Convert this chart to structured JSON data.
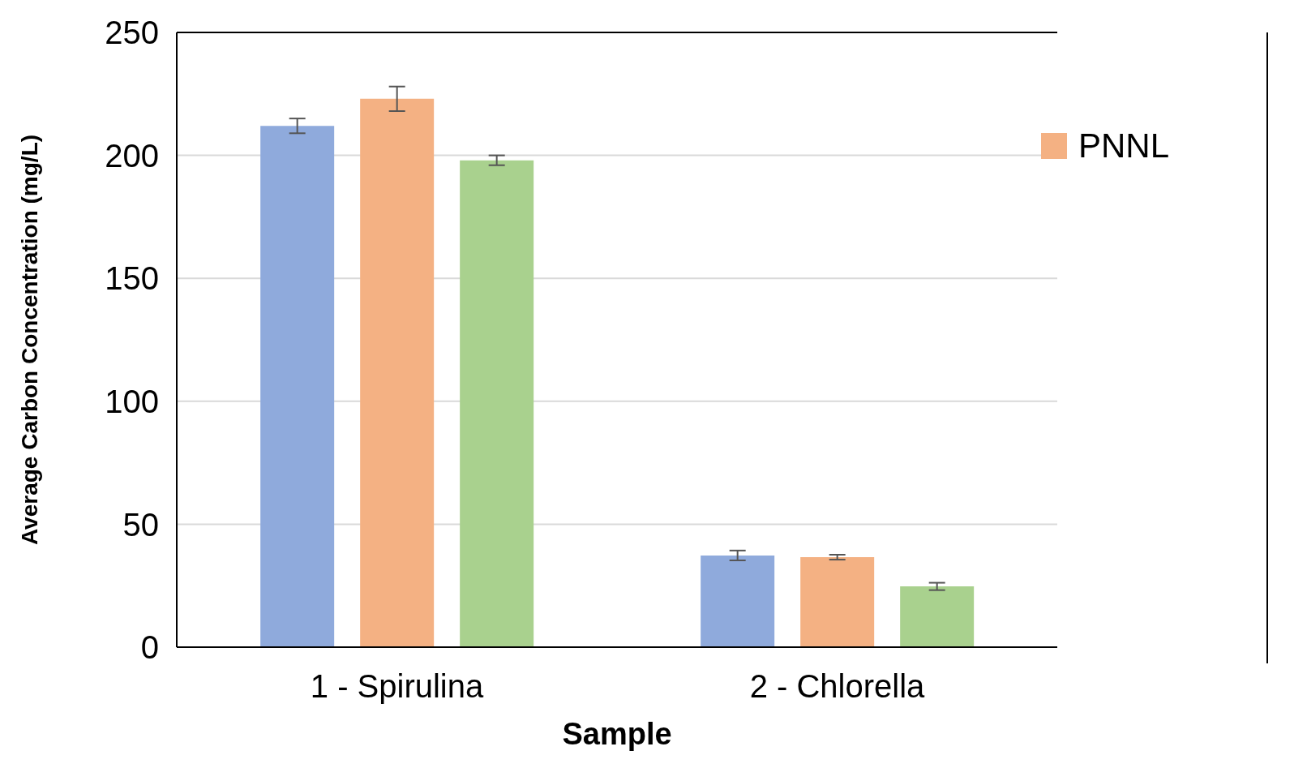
{
  "chart_data": {
    "type": "bar",
    "xlabel": "Sample",
    "ylabel": "Average Carbon Concentration (mg/L)",
    "categories": [
      "1 - Spirulina",
      "2 - Chlorella"
    ],
    "series": [
      {
        "color": "#8faadc",
        "values": [
          212,
          37.3
        ],
        "errors": [
          3,
          2
        ]
      },
      {
        "name": "PNNL",
        "color": "#f4b183",
        "values": [
          223,
          36.6
        ],
        "errors": [
          5,
          1
        ]
      },
      {
        "color": "#a9d18e",
        "values": [
          198,
          24.7
        ],
        "errors": [
          2,
          1.5
        ]
      }
    ],
    "ylim": [
      0,
      250
    ],
    "yticks": [
      0,
      50,
      100,
      150,
      200,
      250
    ],
    "grid": "y",
    "legend": "top right"
  }
}
